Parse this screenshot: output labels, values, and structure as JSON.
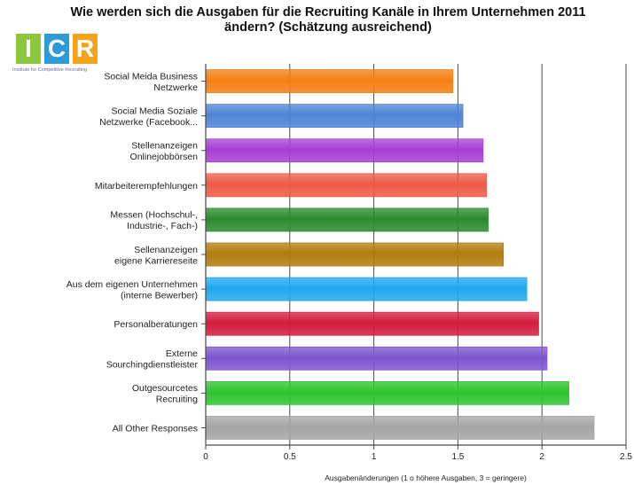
{
  "chart_data": {
    "type": "bar",
    "orientation": "horizontal",
    "title": "Wie werden sich die Ausgaben für die Recruiting Kanäle in  Ihrem Unternehmen 2011 ändern? (Schätzung ausreichend)",
    "xlabel": "Ausgabenänderungen (1 o höhere Ausgaben, 3 = geringere)",
    "xlim": [
      0,
      2.5
    ],
    "xticks": [
      "0",
      "0.5",
      "1",
      "1.5",
      "2",
      "2.5"
    ],
    "grid": "vertical",
    "categories": [
      [
        "Social Meida Business",
        "Netzwerke"
      ],
      [
        "Social Media Soziale",
        "Netzwerke (Facebook..."
      ],
      [
        "Stellenanzeigen",
        "Onlinejobbörsen"
      ],
      [
        "Mitarbeiterempfehlungen"
      ],
      [
        "Messen (Hochschul-,",
        "Industrie-, Fach-)"
      ],
      [
        "Sellenanzeigen",
        "eigene Karriereseite"
      ],
      [
        "Aus dem eigenen Unternehmen",
        "(interne Bewerber)"
      ],
      [
        "Personalberatungen"
      ],
      [
        "Externe",
        "Sourchingdienstleister"
      ],
      [
        "Outgesourcetes",
        "Recruiting"
      ],
      [
        "All Other Responses"
      ]
    ],
    "values": [
      1.47,
      1.53,
      1.65,
      1.67,
      1.68,
      1.77,
      1.91,
      1.98,
      2.03,
      2.16,
      2.31
    ],
    "colors": [
      "#f47f12",
      "#4f83d6",
      "#a63fd6",
      "#ee5a45",
      "#2a8a2e",
      "#b37c0c",
      "#1fa8ee",
      "#d41b3e",
      "#7d55cf",
      "#2ec42e",
      "#a5a5a5"
    ]
  },
  "logo": {
    "letters": [
      "I",
      "C",
      "R"
    ],
    "colors": [
      "#8dc63f",
      "#2e9ad6",
      "#f7a21b"
    ],
    "tagline": "Institute for Competitive Recruiting"
  }
}
